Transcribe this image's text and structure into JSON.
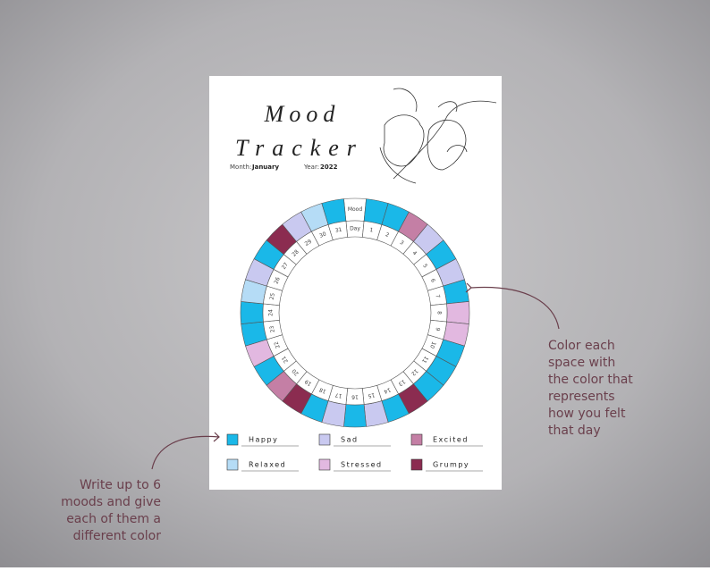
{
  "page": {
    "title_line1": "Mood",
    "title_line2": "Tracker",
    "month_label": "Month:",
    "month": "January",
    "year_label": "Year:",
    "year": "2022",
    "ring": {
      "mood_header": "Mood",
      "day_header": "Day",
      "days": [
        1,
        2,
        3,
        4,
        5,
        6,
        7,
        8,
        9,
        10,
        11,
        12,
        13,
        14,
        15,
        16,
        17,
        18,
        19,
        20,
        21,
        22,
        23,
        24,
        25,
        26,
        27,
        28,
        29,
        30,
        31
      ],
      "day_colors": [
        "#1ab8e8",
        "#1ab8e8",
        "#c47fa5",
        "#c9c9f0",
        "#1ab8e8",
        "#c9c9f0",
        "#1ab8e8",
        "#e2b8e0",
        "#e2b8e0",
        "#1ab8e8",
        "#1ab8e8",
        "#1ab8e8",
        "#8b2c50",
        "#1ab8e8",
        "#c9c9f0",
        "#1ab8e8",
        "#c9c9f0",
        "#1ab8e8",
        "#8b2c50",
        "#c47fa5",
        "#1ab8e8",
        "#e2b8e0",
        "#1ab8e8",
        "#1ab8e8",
        "#b5dcf6",
        "#c9c9f0",
        "#1ab8e8",
        "#8b2c50",
        "#c9c9f0",
        "#b5dcf6",
        "#1ab8e8"
      ]
    },
    "legend": [
      {
        "label": "Happy",
        "color": "#1ab8e8"
      },
      {
        "label": "Sad",
        "color": "#c9c9f0"
      },
      {
        "label": "Excited",
        "color": "#c47fa5"
      },
      {
        "label": "Relaxed",
        "color": "#b5dcf6"
      },
      {
        "label": "Stressed",
        "color": "#e2b8e0"
      },
      {
        "label": "Grumpy",
        "color": "#8b2c50"
      }
    ],
    "note_right": [
      "Color each",
      "space with",
      "the color that",
      "represents",
      "how you felt",
      "that day"
    ],
    "note_left": [
      "Write up to 6",
      "moods and give",
      "each of them a",
      "different color"
    ]
  }
}
